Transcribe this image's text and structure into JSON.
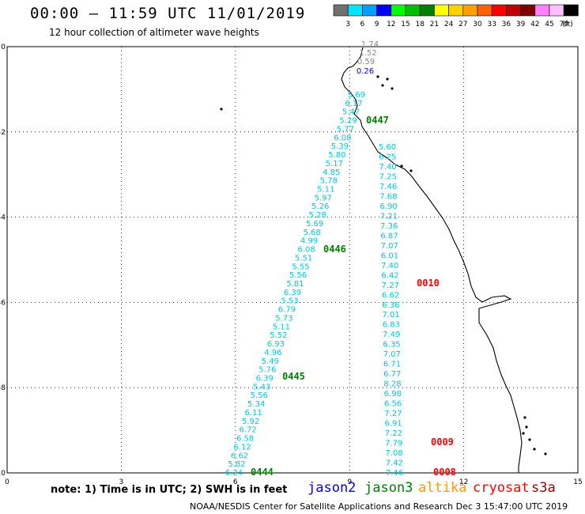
{
  "header": {
    "title": "00:00 – 11:59 UTC 11/01/2019",
    "subtitle": "12 hour collection of altimeter wave heights"
  },
  "colorbar": {
    "unit": "(ft)",
    "bins": [
      {
        "label": "3",
        "color": "#707070"
      },
      {
        "label": "6",
        "color": "#00e5ff"
      },
      {
        "label": "9",
        "color": "#00a0ff"
      },
      {
        "label": "12",
        "color": "#0000ff"
      },
      {
        "label": "15",
        "color": "#00ff00"
      },
      {
        "label": "18",
        "color": "#00c000"
      },
      {
        "label": "21",
        "color": "#008000"
      },
      {
        "label": "24",
        "color": "#ffff00"
      },
      {
        "label": "27",
        "color": "#ffd000"
      },
      {
        "label": "30",
        "color": "#ffa000"
      },
      {
        "label": "33",
        "color": "#ff6000"
      },
      {
        "label": "36",
        "color": "#ff0000"
      },
      {
        "label": "39",
        "color": "#c00000"
      },
      {
        "label": "42",
        "color": "#800000"
      },
      {
        "label": "45",
        "color": "#ff80ff"
      },
      {
        "label": "70",
        "color": "#ffc0ff"
      },
      {
        "label": "",
        "color": "#000000"
      }
    ]
  },
  "map": {
    "x_ticks": [
      "0",
      "3",
      "6",
      "9",
      "12",
      "15"
    ],
    "y_ticks": [
      "0",
      "-2",
      "-4",
      "-6",
      "-8",
      "-10"
    ],
    "colors": {
      "gray": "#888888",
      "cyan": "#00c8e0",
      "blue": "#0000cc",
      "green": "#008000",
      "red": "#ff0000"
    },
    "tracks": [
      {
        "color": "gray",
        "labels": [
          "1.74",
          "1.52",
          "0.59"
        ]
      },
      {
        "color": "blue",
        "labels": [
          "0.26"
        ]
      },
      {
        "color": "cyan",
        "labels": [
          "5.69",
          "6.17",
          "5.47",
          "5.29",
          "5.77",
          "6.08",
          "5.39",
          "5.80",
          "5.17",
          "4.85",
          "5.78",
          "5.11",
          "5.97",
          "5.26",
          "5.28",
          "5.69",
          "5.68",
          "4.99",
          "6.08",
          "5.51",
          "5.55",
          "5.56",
          "5.81",
          "6.39",
          "5.53",
          "6.79",
          "5.73",
          "5.11",
          "5.52",
          "6.93",
          "4.96",
          "5.49",
          "5.76",
          "6.39",
          "5.43",
          "5.56",
          "5.34",
          "6.11",
          "5.92",
          "6.72",
          "6.58",
          "6.12",
          "6.62",
          "5.82",
          "6.24"
        ]
      },
      {
        "color": "cyan",
        "labels": [
          "5.60",
          "6.25",
          "7.40",
          "7.25",
          "7.46",
          "7.68",
          "6.90",
          "7.21",
          "7.36",
          "6.87",
          "7.07",
          "6.01",
          "7.40",
          "6.42",
          "7.27",
          "6.62",
          "6.36",
          "7.01",
          "6.83",
          "7.49",
          "6.35",
          "7.07",
          "6.71",
          "6.77",
          "8.28",
          "6.98",
          "6.56",
          "7.27",
          "6.91",
          "7.22",
          "7.79",
          "7.08",
          "7.42",
          "7.46"
        ]
      }
    ],
    "passes": [
      {
        "label": "0447",
        "color": "green"
      },
      {
        "label": "0446",
        "color": "green"
      },
      {
        "label": "0445",
        "color": "green"
      },
      {
        "label": "0444",
        "color": "green"
      },
      {
        "label": "0010",
        "color": "red"
      },
      {
        "label": "0009",
        "color": "red"
      },
      {
        "label": "0008",
        "color": "red"
      }
    ]
  },
  "footer": {
    "note": "note: 1) Time is in UTC; 2) SWH is in feet",
    "legend": [
      {
        "label": "jason2",
        "color": "#0000ff"
      },
      {
        "label": "jason3",
        "color": "#008000"
      },
      {
        "label": "altika",
        "color": "#ff9900"
      },
      {
        "label": "cryosat",
        "color": "#ff0000"
      },
      {
        "label": "s3a",
        "color": "#990000"
      }
    ],
    "credit": "NOAA/NESDIS Center for Satellite Applications and Research   Dec  3 15:47:00 UTC 2019"
  }
}
